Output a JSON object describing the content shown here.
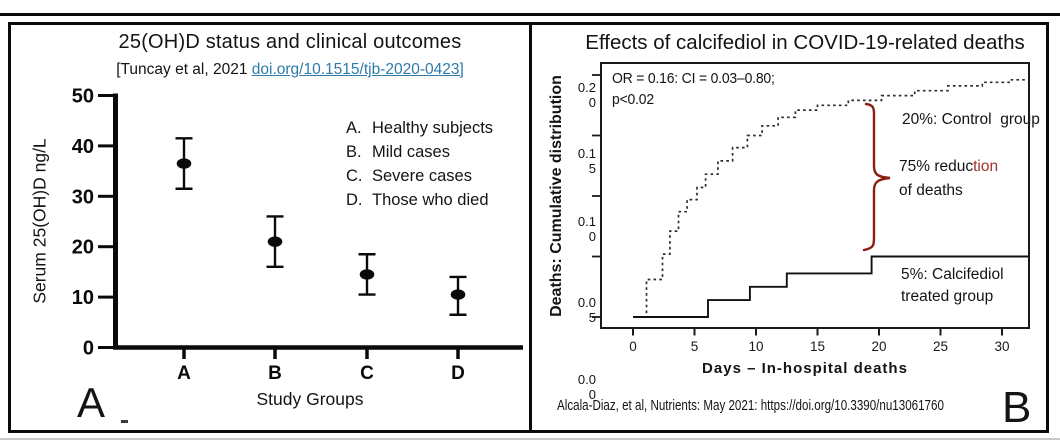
{
  "figure": {
    "panel_a_letter": "A",
    "panel_b_letter": "B"
  },
  "panel_a": {
    "title": "25(OH)D status and clinical outcomes",
    "citation_prefix": "[Tuncay et al, 2021 ",
    "citation_link": "doi.org/10.1515/tjb-2020-0423]",
    "ylabel": "Serum 25(OH)D ng/L",
    "xlabel": "Study Groups",
    "legend": [
      {
        "key": "A.",
        "label": "Healthy subjects"
      },
      {
        "key": "B.",
        "label": "Mild cases"
      },
      {
        "key": "C.",
        "label": "Severe cases"
      },
      {
        "key": "D.",
        "label": "Those who died"
      }
    ],
    "link_color": "#2e7bab"
  },
  "panel_b": {
    "title": "Effects of calcifediol in COVID-19-related deaths",
    "stats_line1": "OR = 0.16: CI = 0.03–0.80;",
    "stats_line2": "p<0.02",
    "control_label": "20%: Control  group",
    "reduction_label_part1": "75% reduc",
    "reduction_label_part2": "tion",
    "reduction_label_line2": "of deaths",
    "treated_label_line1": "5%: Calcifediol",
    "treated_label_line2": "treated group",
    "ylabel": "Deaths: Cumulative distribution",
    "xlabel": "Days – In-hospital deaths",
    "citation": "Alcala-Diaz, et al, Nutrients: May 2021: https://doi.org/10.3390/nu13061760",
    "accent_color": "#8b1d12"
  },
  "chart_data": [
    {
      "type": "scatter",
      "subtype": "mean-with-error-bars",
      "title": "25(OH)D status and clinical outcomes",
      "xlabel": "Study Groups",
      "ylabel": "Serum 25(OH)D ng/L",
      "categories": [
        "A",
        "B",
        "C",
        "D"
      ],
      "values": [
        36.5,
        21,
        14.5,
        10.5
      ],
      "error_low": [
        31.5,
        16,
        10.5,
        6.5
      ],
      "error_high": [
        41.5,
        26,
        18.5,
        14
      ],
      "ylim": [
        0,
        50
      ],
      "yticks": [
        0,
        10,
        20,
        30,
        40,
        50
      ],
      "grid": false,
      "legend_position": "upper right",
      "legend": [
        "A. Healthy subjects",
        "B. Mild cases",
        "C. Severe cases",
        "D. Those who died"
      ]
    },
    {
      "type": "line",
      "subtype": "step-cumulative-incidence",
      "title": "Effects of calcifediol in COVID-19-related deaths",
      "xlabel": "Days – In-hospital deaths",
      "ylabel": "Deaths: Cumulative distribution",
      "xlim": [
        0,
        32
      ],
      "ylim": [
        0,
        0.21
      ],
      "xticks": [
        0,
        5,
        10,
        15,
        20,
        25,
        30
      ],
      "yticks": [
        0.2,
        0.15,
        0.1,
        0.05,
        0.0
      ],
      "ytick_label_lines": [
        [
          "0.2",
          "0"
        ],
        [
          "0.1",
          "5"
        ],
        [
          "0.1",
          "0"
        ],
        [
          "0.0",
          "5"
        ],
        [
          "0.0",
          "0"
        ]
      ],
      "annotation": "OR = 0.16: CI = 0.03–0.80; p<0.02",
      "grid": false,
      "series": [
        {
          "name": "Control group",
          "final_value_pct": "20%",
          "line_style": "dotted",
          "points": [
            [
              0,
              0
            ],
            [
              1.1,
              0.031
            ],
            [
              2.4,
              0.052
            ],
            [
              3.0,
              0.071
            ],
            [
              3.7,
              0.087
            ],
            [
              4.4,
              0.097
            ],
            [
              5.2,
              0.107
            ],
            [
              5.9,
              0.118
            ],
            [
              6.9,
              0.129
            ],
            [
              8.1,
              0.14
            ],
            [
              9.3,
              0.15
            ],
            [
              10.5,
              0.158
            ],
            [
              11.8,
              0.165
            ],
            [
              13.2,
              0.171
            ],
            [
              15.0,
              0.175
            ],
            [
              17.5,
              0.179
            ],
            [
              20.2,
              0.183
            ],
            [
              22.9,
              0.187
            ],
            [
              25.6,
              0.191
            ],
            [
              28.4,
              0.194
            ],
            [
              30.7,
              0.196
            ]
          ]
        },
        {
          "name": "Calcifediol treated group",
          "final_value_pct": "5%",
          "line_style": "solid",
          "points": [
            [
              0,
              0
            ],
            [
              6.1,
              0.014
            ],
            [
              9.5,
              0.025
            ],
            [
              12.5,
              0.036
            ],
            [
              19.4,
              0.05
            ]
          ]
        }
      ]
    }
  ]
}
